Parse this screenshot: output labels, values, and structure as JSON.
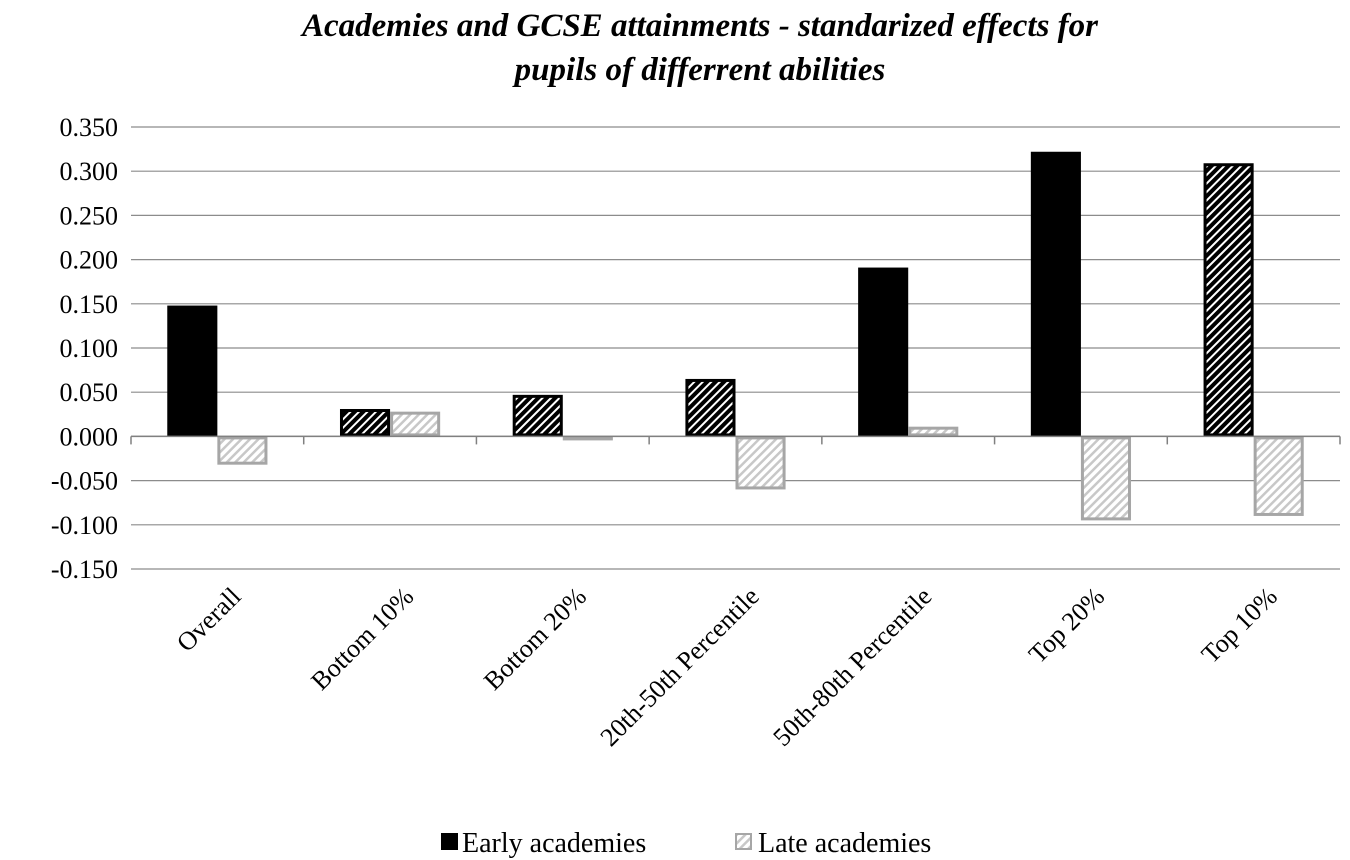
{
  "chart_data": {
    "type": "bar",
    "title_lines": [
      "Academies and GCSE attainments - standarized effects for",
      "pupils of differrent abilities"
    ],
    "xlabel": "",
    "ylabel": "",
    "categories": [
      "Overall",
      "Bottom 10%",
      "Bottom 20%",
      "20th-50th Percentile",
      "50th-80th Percentile",
      "Top 20%",
      "Top 10%"
    ],
    "series": [
      {
        "name": "Early academies",
        "color": "#000000",
        "hatched": [
          false,
          true,
          true,
          true,
          false,
          false,
          true
        ],
        "values": [
          0.148,
          0.031,
          0.047,
          0.065,
          0.191,
          0.322,
          0.309
        ]
      },
      {
        "name": "Late academies",
        "color": "#bfbfbf",
        "hatched": [
          true,
          true,
          false,
          true,
          true,
          true,
          true
        ],
        "values": [
          -0.032,
          0.028,
          -0.003,
          -0.06,
          0.011,
          -0.095,
          -0.09
        ]
      }
    ],
    "ylim": [
      -0.15,
      0.35
    ],
    "yticks": [
      "0.350",
      "0.300",
      "0.250",
      "0.200",
      "0.150",
      "0.100",
      "0.050",
      "0.000",
      "-0.050",
      "-0.100",
      "-0.150"
    ],
    "grid": true,
    "legend_position": "bottom"
  }
}
